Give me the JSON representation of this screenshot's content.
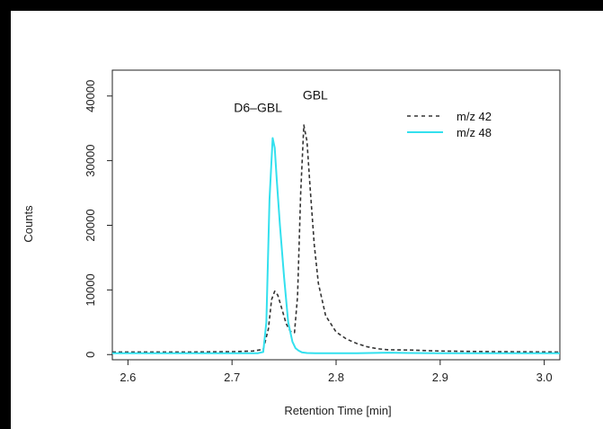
{
  "chart_data": {
    "type": "line",
    "xlabel": "Retention Time [min]",
    "ylabel": "Counts",
    "xlim": [
      2.585,
      3.015
    ],
    "ylim": [
      -800,
      44000
    ],
    "x_ticks": [
      2.6,
      2.7,
      2.8,
      2.9,
      3.0
    ],
    "x_tick_labels": [
      "2.6",
      "2.7",
      "2.8",
      "2.9",
      "3.0"
    ],
    "y_ticks": [
      0,
      10000,
      20000,
      30000,
      40000
    ],
    "y_tick_labels": [
      "0",
      "10000",
      "20000",
      "30000",
      "40000"
    ],
    "legend_position": "top-right",
    "annotations": [
      {
        "text": "D6–GBL",
        "x": 2.725,
        "y": 37500
      },
      {
        "text": "GBL",
        "x": 2.78,
        "y": 39500
      }
    ],
    "series": [
      {
        "name": "m/z 42",
        "color": "#333333",
        "style": "dashed",
        "x": [
          2.585,
          2.62,
          2.66,
          2.7,
          2.72,
          2.73,
          2.735,
          2.738,
          2.741,
          2.744,
          2.748,
          2.752,
          2.756,
          2.76,
          2.763,
          2.766,
          2.769,
          2.772,
          2.775,
          2.779,
          2.783,
          2.79,
          2.8,
          2.81,
          2.82,
          2.83,
          2.84,
          2.85,
          2.87,
          2.9,
          2.95,
          3.015
        ],
        "y": [
          400,
          400,
          400,
          450,
          550,
          800,
          4000,
          8500,
          9800,
          9200,
          7000,
          4800,
          3600,
          3400,
          9000,
          25000,
          35500,
          33000,
          26000,
          17000,
          11000,
          6000,
          3500,
          2400,
          1700,
          1200,
          900,
          750,
          700,
          550,
          450,
          400
        ]
      },
      {
        "name": "m/z 48",
        "color": "#33e0ee",
        "style": "solid",
        "x": [
          2.585,
          2.62,
          2.66,
          2.7,
          2.725,
          2.73,
          2.733,
          2.736,
          2.739,
          2.741,
          2.743,
          2.746,
          2.75,
          2.754,
          2.758,
          2.761,
          2.764,
          2.767,
          2.772,
          2.78,
          2.82,
          2.85,
          2.87,
          2.9,
          2.95,
          3.015
        ],
        "y": [
          200,
          200,
          200,
          200,
          220,
          400,
          5000,
          24000,
          33500,
          32000,
          27000,
          20000,
          12000,
          5000,
          2000,
          1000,
          600,
          350,
          250,
          200,
          200,
          300,
          250,
          200,
          200,
          200
        ]
      }
    ]
  }
}
